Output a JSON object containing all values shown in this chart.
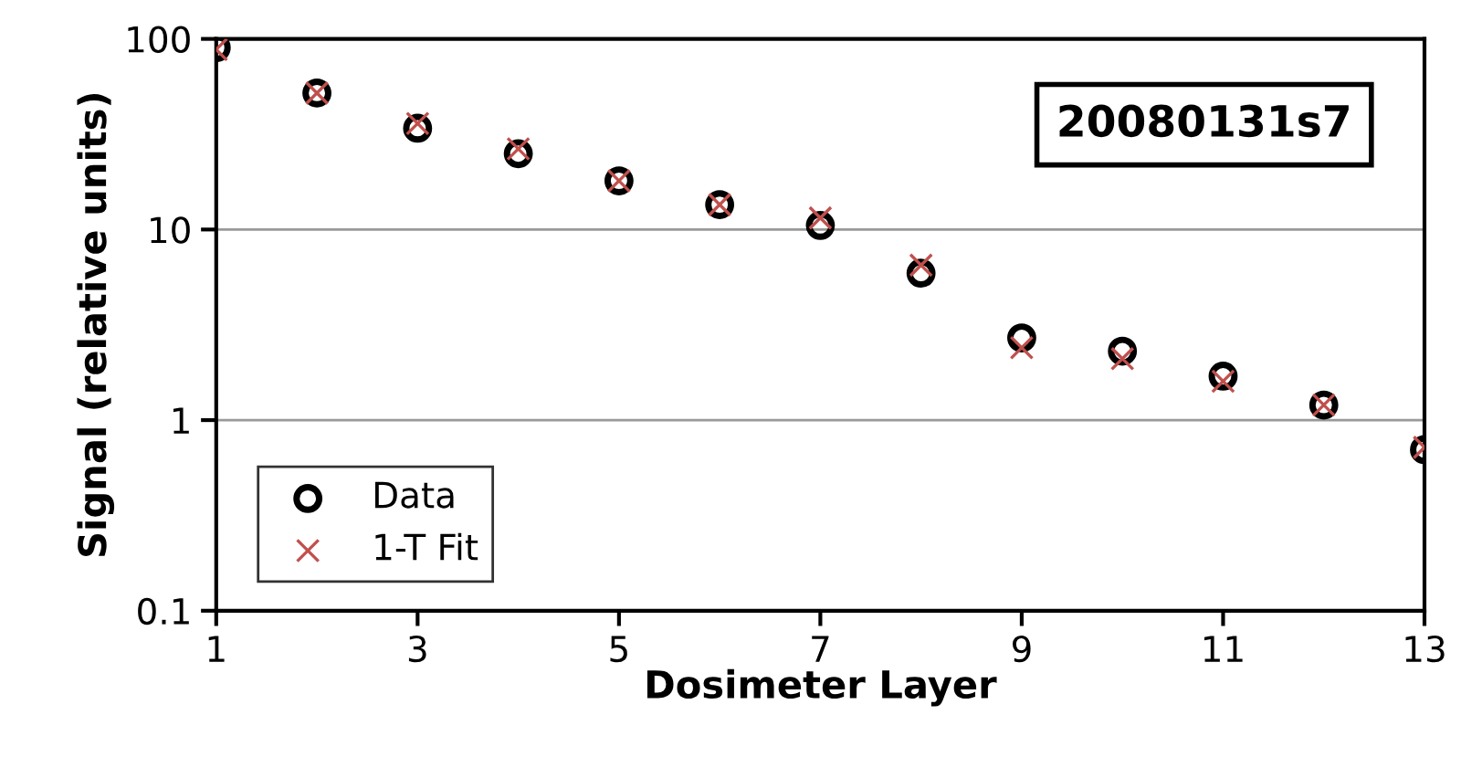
{
  "chart_data": {
    "type": "scatter",
    "xlabel": "Dosimeter Layer",
    "ylabel": "Signal (relative units)",
    "annotations": [
      "20080131s7"
    ],
    "x": [
      1,
      2,
      3,
      4,
      5,
      6,
      7,
      8,
      9,
      10,
      11,
      12,
      13
    ],
    "series": [
      {
        "name": "Data",
        "color": "#000000",
        "marker": "circle",
        "values": [
          90,
          52,
          34,
          25,
          18,
          13.5,
          10.5,
          5.9,
          2.7,
          2.3,
          1.7,
          1.2,
          0.7
        ]
      },
      {
        "name": "1-T Fit",
        "color": "#c0504d",
        "marker": "cross",
        "values": [
          88,
          52,
          36,
          26.5,
          18,
          13.5,
          11.5,
          6.5,
          2.4,
          2.1,
          1.6,
          1.2,
          0.72
        ]
      }
    ],
    "log": "y",
    "xlim": [
      1,
      13
    ],
    "xticks": [
      1,
      3,
      5,
      7,
      9,
      11,
      13
    ],
    "ylim": [
      0.1,
      100
    ],
    "yticks": [
      0.1,
      1,
      10,
      100
    ],
    "grid": "y",
    "legend": "bottom left"
  }
}
